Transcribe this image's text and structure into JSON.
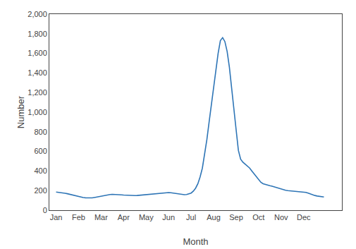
{
  "chart_data": {
    "type": "line",
    "xlabel": "Month",
    "ylabel": "Number",
    "color": "#2e75b6",
    "grid": false,
    "xlim": [
      -0.3,
      12.7
    ],
    "xticks": [
      {
        "value": 0,
        "label": "Jan"
      },
      {
        "value": 1,
        "label": "Feb"
      },
      {
        "value": 2,
        "label": "Mar"
      },
      {
        "value": 3,
        "label": "Apr"
      },
      {
        "value": 4,
        "label": "May"
      },
      {
        "value": 5,
        "label": "Jun"
      },
      {
        "value": 6,
        "label": "Jul"
      },
      {
        "value": 7,
        "label": "Aug"
      },
      {
        "value": 8,
        "label": "Sep"
      },
      {
        "value": 9,
        "label": "Oct"
      },
      {
        "value": 10,
        "label": "Nov"
      },
      {
        "value": 11,
        "label": "Dec"
      }
    ],
    "ylim": [
      0,
      2000
    ],
    "yticks": [
      0,
      200,
      400,
      600,
      800,
      {
        "value": 1000,
        "label": "1,000"
      },
      {
        "value": 1200,
        "label": "1,200"
      },
      {
        "value": 1400,
        "label": "1,400"
      },
      {
        "value": 1600,
        "label": "1,600"
      },
      {
        "value": 1800,
        "label": "1,800"
      },
      {
        "value": 2000,
        "label": "2,000"
      }
    ],
    "x": [
      0.0,
      0.1,
      0.2,
      0.3,
      0.4,
      0.5,
      0.6,
      0.7,
      0.8,
      0.9,
      1.0,
      1.1,
      1.2,
      1.3,
      1.4,
      1.5,
      1.6,
      1.7,
      1.8,
      1.9,
      2.0,
      2.1,
      2.2,
      2.3,
      2.4,
      2.5,
      2.6,
      2.7,
      2.8,
      2.9,
      3.0,
      3.1,
      3.2,
      3.3,
      3.4,
      3.5,
      3.6,
      3.7,
      3.8,
      3.9,
      4.0,
      4.1,
      4.2,
      4.3,
      4.4,
      4.5,
      4.6,
      4.7,
      4.8,
      4.9,
      5.0,
      5.1,
      5.2,
      5.3,
      5.4,
      5.5,
      5.6,
      5.7,
      5.8,
      5.9,
      6.0,
      6.1,
      6.2,
      6.3,
      6.4,
      6.5,
      6.6,
      6.7,
      6.8,
      6.9,
      7.0,
      7.1,
      7.2,
      7.3,
      7.4,
      7.5,
      7.6,
      7.7,
      7.8,
      7.9,
      8.0,
      8.1,
      8.2,
      8.3,
      8.4,
      8.5,
      8.6,
      8.7,
      8.8,
      8.9,
      9.0,
      9.1,
      9.2,
      9.3,
      9.4,
      9.5,
      9.6,
      9.7,
      9.8,
      9.9,
      10.0,
      10.1,
      10.2,
      10.3,
      10.4,
      10.5,
      10.6,
      10.7,
      10.8,
      10.9,
      11.0,
      11.1,
      11.2,
      11.3,
      11.4,
      11.5,
      11.6,
      11.7,
      11.8,
      11.9
    ],
    "values": [
      185,
      183,
      180,
      177,
      173,
      168,
      162,
      156,
      150,
      145,
      140,
      135,
      130,
      127,
      125,
      124,
      126,
      130,
      135,
      140,
      145,
      150,
      155,
      158,
      160,
      162,
      162,
      161,
      159,
      157,
      155,
      153,
      151,
      150,
      149,
      149,
      150,
      152,
      154,
      156,
      158,
      161,
      164,
      167,
      170,
      173,
      175,
      177,
      178,
      179,
      180,
      178,
      175,
      170,
      165,
      161,
      159,
      158,
      160,
      165,
      175,
      195,
      225,
      270,
      340,
      430,
      560,
      720,
      900,
      1080,
      1250,
      1430,
      1600,
      1730,
      1760,
      1720,
      1620,
      1460,
      1260,
      1040,
      820,
      610,
      520,
      490,
      470,
      450,
      430,
      400,
      370,
      340,
      310,
      285,
      270,
      262,
      256,
      250,
      245,
      238,
      230,
      222,
      215,
      208,
      203,
      200,
      198,
      196,
      194,
      192,
      191,
      190,
      188,
      182,
      174,
      165,
      157,
      150,
      145,
      141,
      138,
      135
    ]
  }
}
